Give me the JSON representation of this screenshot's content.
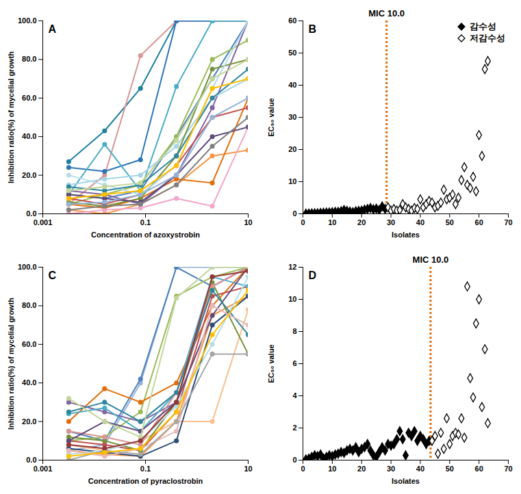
{
  "chart_data": [
    {
      "type": "line",
      "panel_label": "A",
      "x_label": "Concentration of azoxystrobin",
      "y_label": "Inhibition ratio(%) of mycelial growth",
      "log": "x",
      "xlim": [
        0.001,
        10
      ],
      "xticks": [
        0.001,
        0.1,
        10
      ],
      "ylim": [
        0,
        100
      ],
      "yticks": [
        {
          "value": 0,
          "label": "0.0"
        },
        {
          "value": 20,
          "label": "20.0"
        },
        {
          "value": 40,
          "label": "40.0"
        },
        {
          "value": 60,
          "label": "60.0"
        },
        {
          "value": 80,
          "label": "80.0"
        },
        {
          "value": 100,
          "label": "100.0"
        }
      ],
      "marker": "circle",
      "x": [
        0.0032,
        0.016,
        0.08,
        0.4,
        2,
        10
      ],
      "series": [
        {
          "color": "#4f81bd",
          "values": [
            10,
            8,
            12,
            40,
            70,
            100
          ]
        },
        {
          "color": "#1f7f9f",
          "values": [
            27,
            43,
            65,
            100,
            100,
            100
          ]
        },
        {
          "color": "#d99694",
          "values": [
            5,
            20,
            82,
            100,
            100,
            100
          ]
        },
        {
          "color": "#2e75b6",
          "values": [
            24,
            22,
            28,
            100,
            100,
            100
          ]
        },
        {
          "color": "#4bacc6",
          "values": [
            10,
            36,
            12,
            66,
            100,
            100
          ]
        },
        {
          "color": "#9bbb59",
          "values": [
            5,
            10,
            15,
            40,
            80,
            90
          ]
        },
        {
          "color": "#f79646",
          "values": [
            2,
            0,
            5,
            15,
            30,
            33
          ]
        },
        {
          "color": "#e46c0a",
          "values": [
            5,
            3,
            8,
            18,
            16,
            60
          ]
        },
        {
          "color": "#8064a2",
          "values": [
            12,
            10,
            5,
            20,
            55,
            100
          ]
        },
        {
          "color": "#c0504d",
          "values": [
            8,
            5,
            10,
            25,
            50,
            55
          ]
        },
        {
          "color": "#a5d5e6",
          "values": [
            15,
            18,
            20,
            35,
            60,
            70
          ]
        },
        {
          "color": "#77933c",
          "values": [
            6,
            4,
            8,
            30,
            75,
            80
          ]
        },
        {
          "color": "#b7dee8",
          "values": [
            20,
            15,
            10,
            25,
            65,
            100
          ]
        },
        {
          "color": "#f2a6c8",
          "values": [
            0,
            2,
            3,
            8,
            4,
            45
          ]
        },
        {
          "color": "#31859c",
          "values": [
            14,
            12,
            15,
            30,
            60,
            75
          ]
        },
        {
          "color": "#604a7b",
          "values": [
            10,
            8,
            6,
            20,
            40,
            45
          ]
        },
        {
          "color": "#95b3d7",
          "values": [
            5,
            6,
            10,
            20,
            50,
            60
          ]
        },
        {
          "color": "#ffc000",
          "values": [
            8,
            10,
            12,
            25,
            65,
            70
          ]
        },
        {
          "color": "#c3d69b",
          "values": [
            12,
            14,
            16,
            38,
            70,
            80
          ]
        },
        {
          "color": "#7f7f7f",
          "values": [
            2,
            4,
            5,
            15,
            35,
            50
          ]
        }
      ]
    },
    {
      "type": "scatter",
      "panel_label": "B",
      "title": "MIC 10.0",
      "x_label": "Isolates",
      "y_label": "EC₅₀ value",
      "xlim": [
        0,
        70
      ],
      "xticks": [
        0,
        10,
        20,
        30,
        40,
        50,
        60,
        70
      ],
      "ylim": [
        0,
        60
      ],
      "yticks": [
        0,
        10,
        20,
        30,
        40,
        50,
        60
      ],
      "legend": "top-right",
      "reference_line": {
        "x": 28.5,
        "color": "#e46c0a",
        "line_style": "dotted"
      },
      "series": [
        {
          "name": "감수성",
          "color": "#000000",
          "marker": "diamond",
          "x": [
            1,
            2,
            3,
            4,
            5,
            6,
            7,
            8,
            9,
            10,
            11,
            12,
            13,
            14,
            15,
            16,
            17,
            18,
            19,
            20,
            21,
            22,
            23,
            24,
            25,
            26,
            27,
            28
          ],
          "values": [
            0.05,
            0.1,
            0.15,
            0.2,
            0.2,
            0.3,
            0.35,
            0.4,
            0.45,
            0.5,
            0.6,
            0.6,
            0.8,
            1.2,
            0.9,
            0.7,
            0.5,
            0.8,
            0.9,
            1.0,
            1.3,
            1.5,
            1.8,
            1.4,
            1.6,
            1.2,
            2.3,
            1.5
          ]
        },
        {
          "name": "저감수성",
          "color": "#000000",
          "marker": "open_diamond",
          "x": [
            29,
            30,
            31,
            32,
            33,
            34,
            35,
            36,
            37,
            38,
            39,
            40,
            41,
            42,
            43,
            44,
            45,
            46,
            47,
            48,
            49,
            50,
            51,
            52,
            53,
            54,
            55,
            56,
            57,
            58,
            59,
            60,
            61,
            62,
            63
          ],
          "values": [
            2.0,
            1.0,
            1.5,
            1.0,
            1.2,
            3.0,
            2.0,
            1.5,
            1.0,
            1.8,
            1.5,
            4.5,
            2.0,
            3.0,
            4.0,
            3.5,
            2.0,
            2.5,
            3.5,
            7.5,
            4.5,
            5.0,
            6.0,
            3.0,
            5.0,
            10.5,
            14.5,
            9.0,
            8.0,
            11.5,
            7.0,
            24.5,
            18.0,
            45.0,
            47.5
          ]
        }
      ]
    },
    {
      "type": "line",
      "panel_label": "C",
      "x_label": "Concentration of pyraclostrobin",
      "y_label": "Inhibition ratio(%) of mycelial growth",
      "log": "x",
      "xlim": [
        0.001,
        10
      ],
      "xticks": [
        0.001,
        0.1,
        10
      ],
      "ylim": [
        0,
        100
      ],
      "yticks": [
        {
          "value": 0,
          "label": "0.0"
        },
        {
          "value": 20,
          "label": "20.0"
        },
        {
          "value": 40,
          "label": "40.0"
        },
        {
          "value": 60,
          "label": "60.0"
        },
        {
          "value": 80,
          "label": "80.0"
        },
        {
          "value": 100,
          "label": "100.0"
        }
      ],
      "marker": "circle",
      "x": [
        0.0032,
        0.016,
        0.08,
        0.4,
        2,
        10
      ],
      "series": [
        {
          "color": "#95b3d7",
          "values": [
            5,
            8,
            40,
            100,
            100,
            100
          ]
        },
        {
          "color": "#4f81bd",
          "values": [
            15,
            10,
            42,
            100,
            90,
            100
          ]
        },
        {
          "color": "#9bbb59",
          "values": [
            10,
            12,
            25,
            85,
            95,
            100
          ]
        },
        {
          "color": "#e46c0a",
          "values": [
            20,
            37,
            30,
            40,
            80,
            100
          ]
        },
        {
          "color": "#8064a2",
          "values": [
            30,
            25,
            20,
            30,
            90,
            100
          ]
        },
        {
          "color": "#c0504d",
          "values": [
            10,
            8,
            5,
            25,
            85,
            90
          ]
        },
        {
          "color": "#f79646",
          "values": [
            5,
            3,
            2,
            20,
            75,
            85
          ]
        },
        {
          "color": "#4bacc6",
          "values": [
            24,
            27,
            15,
            35,
            95,
            90
          ]
        },
        {
          "color": "#fac090",
          "values": [
            8,
            5,
            10,
            20,
            20,
            78
          ]
        },
        {
          "color": "#77933c",
          "values": [
            12,
            10,
            5,
            30,
            92,
            55
          ]
        },
        {
          "color": "#2c4d75",
          "values": [
            6,
            4,
            2,
            10,
            70,
            85
          ]
        },
        {
          "color": "#d99694",
          "values": [
            15,
            12,
            8,
            35,
            90,
            100
          ]
        },
        {
          "color": "#b7dee8",
          "values": [
            3,
            5,
            10,
            28,
            60,
            95
          ]
        },
        {
          "color": "#604a7b",
          "values": [
            10,
            20,
            15,
            30,
            75,
            100
          ]
        },
        {
          "color": "#31859c",
          "values": [
            25,
            30,
            20,
            35,
            88,
            65
          ]
        },
        {
          "color": "#e6b9b8",
          "values": [
            5,
            2,
            6,
            15,
            80,
            70
          ]
        },
        {
          "color": "#a5a5a5",
          "values": [
            0,
            5,
            3,
            20,
            55,
            55
          ]
        },
        {
          "color": "#c3d69b",
          "values": [
            32,
            20,
            12,
            84,
            100,
            100
          ]
        },
        {
          "color": "#953735",
          "values": [
            8,
            6,
            10,
            30,
            95,
            98
          ]
        },
        {
          "color": "#ffc000",
          "values": [
            2,
            4,
            6,
            25,
            65,
            88
          ]
        }
      ]
    },
    {
      "type": "scatter",
      "panel_label": "D",
      "title": "MIC 10.0",
      "x_label": "Isolates",
      "y_label": "EC₅₀ value",
      "xlim": [
        0,
        70
      ],
      "xticks": [
        0,
        10,
        20,
        30,
        40,
        50,
        60,
        70
      ],
      "ylim": [
        0,
        12
      ],
      "yticks": [
        0,
        2,
        4,
        6,
        8,
        10,
        12
      ],
      "reference_line": {
        "x": 43.5,
        "color": "#e46c0a",
        "line_style": "dotted"
      },
      "series": [
        {
          "color": "#000000",
          "marker": "diamond",
          "x": [
            1,
            2,
            3,
            4,
            5,
            6,
            7,
            8,
            9,
            10,
            11,
            12,
            13,
            14,
            15,
            16,
            17,
            18,
            19,
            20,
            21,
            22,
            23,
            24,
            25,
            26,
            27,
            28,
            29,
            30,
            31,
            32,
            33,
            34,
            35,
            36,
            37,
            38,
            39,
            40,
            41,
            42,
            43
          ],
          "values": [
            0.05,
            0.1,
            0.2,
            0.3,
            0.25,
            0.35,
            0.1,
            0.2,
            0.3,
            0.25,
            0.35,
            0.4,
            0.5,
            0.45,
            0.6,
            0.7,
            0.6,
            0.8,
            0.5,
            0.7,
            0.8,
            1.0,
            0.6,
            0.3,
            0.2,
            0.5,
            0.8,
            0.6,
            1.0,
            0.9,
            1.0,
            1.3,
            1.8,
            1.3,
            0.3,
            1.7,
            1.5,
            1.8,
            1.2,
            1.5,
            1.3,
            1.0,
            1.2
          ]
        },
        {
          "color": "#000000",
          "marker": "open_diamond",
          "x": [
            44,
            45,
            46,
            47,
            48,
            49,
            50,
            51,
            52,
            53,
            54,
            55,
            56,
            57,
            58,
            59,
            60,
            61,
            62,
            63
          ],
          "values": [
            1.2,
            1.5,
            0.4,
            1.7,
            0.7,
            2.6,
            1.0,
            1.5,
            1.7,
            1.6,
            2.6,
            1.4,
            10.8,
            5.1,
            3.9,
            8.5,
            10.0,
            3.3,
            6.9,
            2.3
          ]
        }
      ]
    }
  ]
}
